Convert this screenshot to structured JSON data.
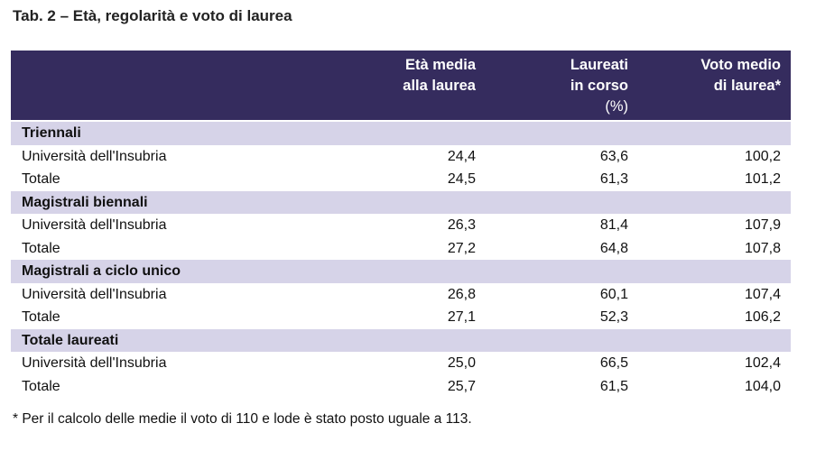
{
  "title": "Tab. 2 – Età, regolarità e voto di laurea",
  "columns": [
    {
      "lines": [
        "Età media",
        "alla laurea"
      ]
    },
    {
      "lines": [
        "Laureati",
        "in corso",
        "(%)"
      ]
    },
    {
      "lines": [
        "Voto medio",
        "di laurea*"
      ]
    }
  ],
  "rows": [
    {
      "type": "group",
      "label": "Triennali"
    },
    {
      "type": "data",
      "label": "Università dell'Insubria",
      "values": [
        "24,4",
        "63,6",
        "100,2"
      ]
    },
    {
      "type": "data",
      "label": "Totale",
      "values": [
        "24,5",
        "61,3",
        "101,2"
      ]
    },
    {
      "type": "group",
      "label": "Magistrali biennali"
    },
    {
      "type": "data",
      "label": "Università dell'Insubria",
      "values": [
        "26,3",
        "81,4",
        "107,9"
      ]
    },
    {
      "type": "data",
      "label": "Totale",
      "values": [
        "27,2",
        "64,8",
        "107,8"
      ]
    },
    {
      "type": "group",
      "label": "Magistrali a ciclo unico"
    },
    {
      "type": "data",
      "label": "Università dell'Insubria",
      "values": [
        "26,8",
        "60,1",
        "107,4"
      ]
    },
    {
      "type": "data",
      "label": "Totale",
      "values": [
        "27,1",
        "52,3",
        "106,2"
      ]
    },
    {
      "type": "group",
      "label": "Totale laureati"
    },
    {
      "type": "data",
      "label": "Università dell'Insubria",
      "values": [
        "25,0",
        "66,5",
        "102,4"
      ]
    },
    {
      "type": "data",
      "label": "Totale",
      "values": [
        "25,7",
        "61,5",
        "104,0"
      ]
    }
  ],
  "footnote": "* Per il calcolo delle medie il voto di 110 e lode è stato posto uguale a 113.",
  "colors": {
    "header": "#352c5e",
    "group": "#d6d3e8"
  }
}
